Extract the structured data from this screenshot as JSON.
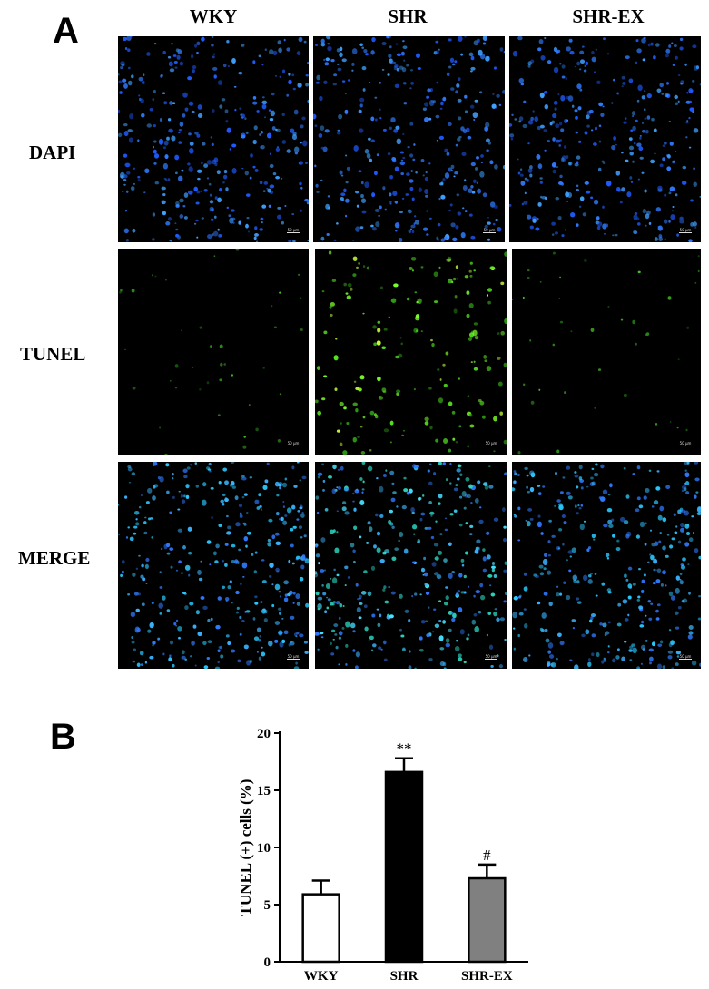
{
  "panel_a": {
    "letter": "A",
    "columns": [
      "WKY",
      "SHR",
      "SHR-EX"
    ],
    "rows": [
      "DAPI",
      "TUNEL",
      "MERGE"
    ],
    "scale_bar_label": "50 μm",
    "colors": {
      "dapi": "#2f7bff",
      "tunel": "#55e020",
      "merge": "#39b4ff"
    }
  },
  "panel_b": {
    "letter": "B"
  },
  "chart_data": {
    "type": "bar",
    "categories": [
      "WKY",
      "SHR",
      "SHR-EX"
    ],
    "values": [
      5.9,
      16.6,
      7.3
    ],
    "errors": [
      1.2,
      1.2,
      1.2
    ],
    "annotations": [
      "",
      "**",
      "#"
    ],
    "bar_colors": [
      "#ffffff",
      "#000000",
      "#808080"
    ],
    "title": "",
    "xlabel": "",
    "ylabel": "TUNEL (+) cells (%)",
    "ylim": [
      0,
      20
    ],
    "yticks": [
      0,
      5,
      10,
      15,
      20
    ],
    "grid": false,
    "legend": "none"
  }
}
